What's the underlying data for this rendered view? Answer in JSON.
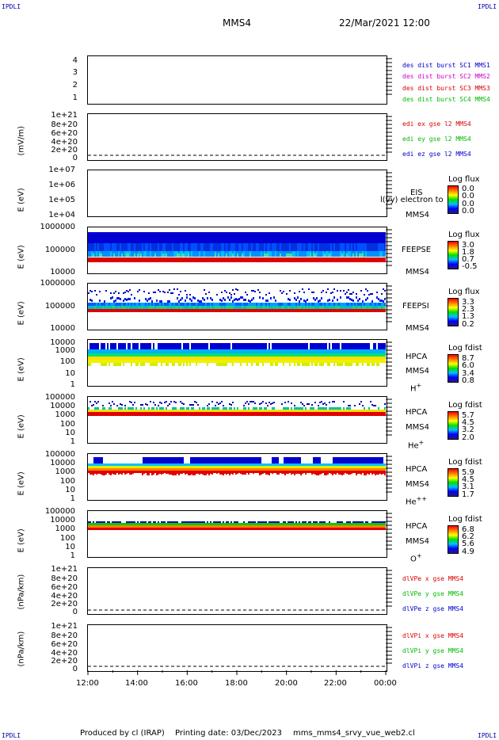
{
  "corner_labels": [
    "IPDLI",
    "IPDLI",
    "IPDLI",
    "IPDLI"
  ],
  "header": {
    "spacecraft": "MMS4",
    "datetime": "22/Mar/2021 12:00"
  },
  "footer": {
    "producer": "Produced by cl (IRAP)",
    "printing_date": "Printing date: 03/Dec/2023",
    "product": "mms_mms4_srvy_vue_web2.cl"
  },
  "chart_data": {
    "type": "heatmap",
    "x_tick_labels": [
      "12:00",
      "14:00",
      "16:00",
      "18:00",
      "20:00",
      "22:00",
      "00:00"
    ],
    "panels": [
      {
        "id": "p1",
        "ylabel": "",
        "y_ticks": [
          "4",
          "3",
          "2",
          "1"
        ],
        "legend": [
          {
            "text": "des dist burst SC1 MMS1",
            "color": "#0000cc"
          },
          {
            "text": "des dist burst SC2 MMS2",
            "color": "#cc00cc"
          },
          {
            "text": "des dist burst SC3 MMS3",
            "color": "#dd0000"
          },
          {
            "text": "des dist burst SC4 MMS4",
            "color": "#00bb00"
          }
        ]
      },
      {
        "id": "p2",
        "ylabel": "(mV/m)",
        "y_ticks": [
          "1e+21",
          "8e+20",
          "6e+20",
          "4e+20",
          "2e+20",
          "0"
        ],
        "legend": [
          {
            "text": "edi ex gse l2 MMS4",
            "color": "#dd0000"
          },
          {
            "text": "edi ey gse l2 MMS4",
            "color": "#00bb00"
          },
          {
            "text": "edi ez gse l2 MMS4",
            "color": "#0000cc"
          }
        ]
      },
      {
        "id": "p3",
        "ylabel": "E (eV)",
        "y_ticks": [
          "1e+07",
          "1e+06",
          "1e+05",
          "1e+04"
        ],
        "instrument": [
          "EIS",
          "MMS4"
        ],
        "overlay_text": "l(vy) electron to",
        "colorbar": {
          "title": "Log flux",
          "values": [
            "0.0",
            "0.0",
            "0.0",
            "0.0"
          ]
        }
      },
      {
        "id": "p4",
        "ylabel": "E (eV)",
        "y_ticks": [
          "1000000",
          "100000",
          "10000"
        ],
        "instrument": [
          "FEEPSE",
          "MMS4"
        ],
        "colorbar": {
          "title": "Log flux",
          "values": [
            "3.0",
            "1.8",
            "0.7",
            "-0.5"
          ]
        }
      },
      {
        "id": "p5",
        "ylabel": "E (eV)",
        "y_ticks": [
          "1000000",
          "100000",
          "10000"
        ],
        "instrument": [
          "FEEPSI",
          "MMS4"
        ],
        "colorbar": {
          "title": "Log flux",
          "values": [
            "3.3",
            "2.3",
            "1.3",
            "0.2"
          ]
        }
      },
      {
        "id": "p6",
        "ylabel": "E (eV)",
        "y_ticks": [
          "10000",
          "1000",
          "100",
          "10",
          "1"
        ],
        "instrument": [
          "HPCA",
          "MMS4"
        ],
        "species": "H",
        "species_sup": "+",
        "colorbar": {
          "title": "Log fdist",
          "values": [
            "8.7",
            "6.0",
            "3.4",
            "0.8"
          ]
        }
      },
      {
        "id": "p7",
        "ylabel": "E (eV)",
        "y_ticks": [
          "100000",
          "10000",
          "1000",
          "100",
          "10",
          "1"
        ],
        "instrument": [
          "HPCA",
          "MMS4"
        ],
        "species": "He",
        "species_sup": "+",
        "colorbar": {
          "title": "Log fdist",
          "values": [
            "5.7",
            "4.5",
            "3.2",
            "2.0"
          ]
        }
      },
      {
        "id": "p8",
        "ylabel": "E (eV)",
        "y_ticks": [
          "100000",
          "10000",
          "1000",
          "100",
          "10",
          "1"
        ],
        "instrument": [
          "HPCA",
          "MMS4"
        ],
        "species": "He",
        "species_sup": "++",
        "colorbar": {
          "title": "Log fdist",
          "values": [
            "5.9",
            "4.5",
            "3.1",
            "1.7"
          ]
        }
      },
      {
        "id": "p9",
        "ylabel": "E (eV)",
        "y_ticks": [
          "100000",
          "10000",
          "1000",
          "100",
          "10",
          "1"
        ],
        "instrument": [
          "HPCA",
          "MMS4"
        ],
        "species": "O",
        "species_sup": "+",
        "colorbar": {
          "title": "Log fdist",
          "values": [
            "6.8",
            "6.2",
            "5.6",
            "4.9"
          ]
        }
      },
      {
        "id": "p10",
        "ylabel": "(nPa/km)",
        "y_ticks": [
          "1e+21",
          "8e+20",
          "6e+20",
          "4e+20",
          "2e+20",
          "0"
        ],
        "legend": [
          {
            "text": "dlVPe x gse MMS4",
            "color": "#dd0000"
          },
          {
            "text": "dlVPe y gse MMS4",
            "color": "#00bb00"
          },
          {
            "text": "dlVPe z gse MMS4",
            "color": "#0000cc"
          }
        ]
      },
      {
        "id": "p11",
        "ylabel": "(nPa/km)",
        "y_ticks": [
          "1e+21",
          "8e+20",
          "6e+20",
          "4e+20",
          "2e+20",
          "0"
        ],
        "legend": [
          {
            "text": "dlVPi x gse MMS4",
            "color": "#dd0000"
          },
          {
            "text": "dlVPi y gse MMS4",
            "color": "#00bb00"
          },
          {
            "text": "dlVPi z gse MMS4",
            "color": "#0000cc"
          }
        ]
      }
    ]
  }
}
